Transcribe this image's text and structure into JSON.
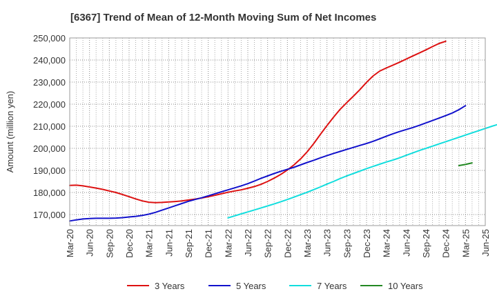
{
  "chart_data": {
    "type": "line",
    "title": "[6367]  Trend of Mean of 12-Month Moving Sum of Net Incomes",
    "ylabel": "Amount (million yen)",
    "xlabel": "",
    "ylim": [
      165000,
      250000
    ],
    "yticks": [
      170000,
      180000,
      190000,
      200000,
      210000,
      220000,
      230000,
      240000,
      250000
    ],
    "ytick_labels": [
      "170,000",
      "180,000",
      "190,000",
      "200,000",
      "210,000",
      "220,000",
      "230,000",
      "240,000",
      "250,000"
    ],
    "xticks": [
      "Mar-20",
      "Jun-20",
      "Sep-20",
      "Dec-20",
      "Mar-21",
      "Jun-21",
      "Sep-21",
      "Dec-21",
      "Mar-22",
      "Jun-22",
      "Sep-22",
      "Dec-22",
      "Mar-23",
      "Jun-23",
      "Sep-23",
      "Dec-23",
      "Mar-24",
      "Jun-24",
      "Sep-24",
      "Dec-24",
      "Mar-25",
      "Jun-25"
    ],
    "grid": true,
    "legend_position": "bottom",
    "series": [
      {
        "name": "3 Years",
        "color": "#dd1111",
        "start": "Mar-20",
        "values": [
          183200,
          183300,
          183000,
          182500,
          182000,
          181400,
          180700,
          180000,
          179100,
          178100,
          177100,
          176200,
          175600,
          175400,
          175500,
          175700,
          175900,
          176200,
          176600,
          177000,
          177500,
          178100,
          178700,
          179400,
          180100,
          180700,
          181200,
          181900,
          182700,
          183700,
          185000,
          186500,
          188200,
          190200,
          192500,
          195200,
          198400,
          202200,
          206300,
          210300,
          214100,
          217700,
          220700,
          223600,
          226600,
          229900,
          232800,
          235000,
          236400,
          237700,
          239000,
          240400,
          241800,
          243200,
          244600,
          246100,
          247500,
          248500
        ]
      },
      {
        "name": "5 Years",
        "color": "#1111cc",
        "start": "Mar-20",
        "values": [
          167100,
          167600,
          168000,
          168200,
          168300,
          168300,
          168300,
          168400,
          168600,
          168900,
          169200,
          169600,
          170200,
          171000,
          172000,
          173000,
          174000,
          175000,
          176000,
          176800,
          177600,
          178500,
          179400,
          180300,
          181200,
          182100,
          183000,
          184000,
          185200,
          186400,
          187500,
          188600,
          189600,
          190500,
          191400,
          192500,
          193600,
          194600,
          195700,
          196700,
          197700,
          198600,
          199500,
          200400,
          201300,
          202200,
          203200,
          204300,
          205500,
          206600,
          207600,
          208500,
          209400,
          210400,
          211500,
          212600,
          213700,
          214800,
          216000,
          217500,
          219300
        ]
      },
      {
        "name": "7 Years",
        "color": "#11dddd",
        "start": "Mar-22",
        "values": [
          168500,
          169400,
          170300,
          171200,
          172100,
          173000,
          173900,
          174800,
          175800,
          176800,
          177900,
          179000,
          180100,
          181300,
          182500,
          183800,
          185000,
          186300,
          187500,
          188600,
          189700,
          190800,
          191800,
          192800,
          193800,
          194700,
          195700,
          196800,
          197900,
          199000,
          200000,
          201000,
          202000,
          203000,
          204000,
          205000,
          206000,
          207000,
          208000,
          209000,
          210000,
          210900,
          211300
        ]
      },
      {
        "name": "10 Years",
        "color": "#228822",
        "start": "Feb-25",
        "values": [
          192200,
          192700,
          193400
        ]
      }
    ]
  }
}
